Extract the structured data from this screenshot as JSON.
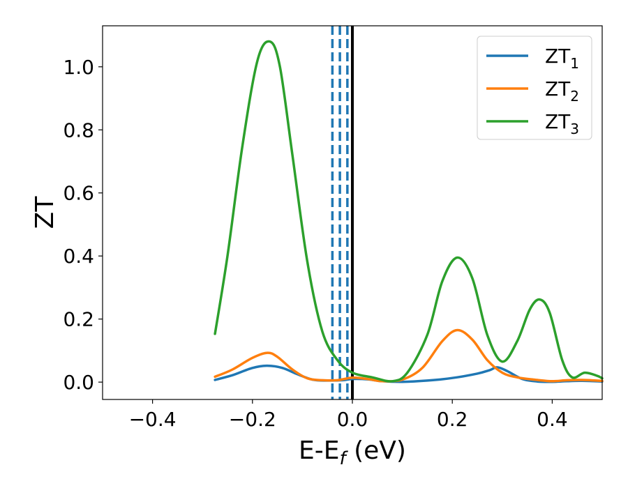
{
  "chart_data": {
    "type": "line",
    "title": "",
    "xlabel": "E-E",
    "xlabel_sub": "f",
    "xlabel_unit": " (eV)",
    "ylabel": "ZT",
    "xlim": [
      -0.5,
      0.5
    ],
    "ylim": [
      -0.055,
      1.13
    ],
    "x_ticks": [
      -0.4,
      -0.2,
      0.0,
      0.2,
      0.4
    ],
    "x_tick_labels": [
      "−0.4",
      "−0.2",
      "0.0",
      "0.2",
      "0.4"
    ],
    "y_ticks": [
      0.0,
      0.2,
      0.4,
      0.6,
      0.8,
      1.0
    ],
    "y_tick_labels": [
      "0.0",
      "0.2",
      "0.4",
      "0.6",
      "0.8",
      "1.0"
    ],
    "grid": false,
    "legend_position": "top-right",
    "series": [
      {
        "name": "ZT",
        "sub": "1",
        "color": "#1f77b4",
        "points": [
          [
            -0.275,
            0.007
          ],
          [
            -0.24,
            0.022
          ],
          [
            -0.2,
            0.045
          ],
          [
            -0.17,
            0.052
          ],
          [
            -0.14,
            0.045
          ],
          [
            -0.11,
            0.025
          ],
          [
            -0.08,
            0.008
          ],
          [
            -0.05,
            0.005
          ],
          [
            -0.02,
            0.006
          ],
          [
            0.0,
            0.01
          ],
          [
            0.03,
            0.009
          ],
          [
            0.06,
            0.003
          ],
          [
            0.1,
            0.001
          ],
          [
            0.15,
            0.005
          ],
          [
            0.2,
            0.013
          ],
          [
            0.25,
            0.027
          ],
          [
            0.275,
            0.038
          ],
          [
            0.29,
            0.047
          ],
          [
            0.31,
            0.035
          ],
          [
            0.34,
            0.01
          ],
          [
            0.37,
            0.002
          ],
          [
            0.4,
            0.001
          ],
          [
            0.43,
            0.003
          ],
          [
            0.46,
            0.004
          ],
          [
            0.5,
            0.002
          ]
        ]
      },
      {
        "name": "ZT",
        "sub": "2",
        "color": "#ff7f0e",
        "points": [
          [
            -0.275,
            0.017
          ],
          [
            -0.24,
            0.04
          ],
          [
            -0.2,
            0.077
          ],
          [
            -0.17,
            0.093
          ],
          [
            -0.15,
            0.08
          ],
          [
            -0.12,
            0.04
          ],
          [
            -0.09,
            0.012
          ],
          [
            -0.06,
            0.006
          ],
          [
            -0.03,
            0.006
          ],
          [
            0.0,
            0.014
          ],
          [
            0.03,
            0.01
          ],
          [
            0.06,
            0.003
          ],
          [
            0.1,
            0.008
          ],
          [
            0.14,
            0.045
          ],
          [
            0.18,
            0.13
          ],
          [
            0.21,
            0.165
          ],
          [
            0.24,
            0.135
          ],
          [
            0.27,
            0.07
          ],
          [
            0.3,
            0.03
          ],
          [
            0.33,
            0.015
          ],
          [
            0.37,
            0.007
          ],
          [
            0.4,
            0.003
          ],
          [
            0.43,
            0.006
          ],
          [
            0.46,
            0.007
          ],
          [
            0.5,
            0.004
          ]
        ]
      },
      {
        "name": "ZT",
        "sub": "3",
        "color": "#2ca02c",
        "points": [
          [
            -0.275,
            0.153
          ],
          [
            -0.25,
            0.4
          ],
          [
            -0.22,
            0.75
          ],
          [
            -0.19,
            1.02
          ],
          [
            -0.165,
            1.08
          ],
          [
            -0.145,
            1.0
          ],
          [
            -0.12,
            0.72
          ],
          [
            -0.09,
            0.38
          ],
          [
            -0.06,
            0.16
          ],
          [
            -0.03,
            0.07
          ],
          [
            0.0,
            0.03
          ],
          [
            0.04,
            0.015
          ],
          [
            0.08,
            0.003
          ],
          [
            0.11,
            0.03
          ],
          [
            0.15,
            0.15
          ],
          [
            0.18,
            0.32
          ],
          [
            0.21,
            0.395
          ],
          [
            0.24,
            0.33
          ],
          [
            0.27,
            0.15
          ],
          [
            0.3,
            0.065
          ],
          [
            0.33,
            0.13
          ],
          [
            0.355,
            0.23
          ],
          [
            0.375,
            0.262
          ],
          [
            0.395,
            0.22
          ],
          [
            0.42,
            0.07
          ],
          [
            0.44,
            0.015
          ],
          [
            0.465,
            0.03
          ],
          [
            0.49,
            0.02
          ],
          [
            0.5,
            0.012
          ]
        ]
      }
    ],
    "vertical_lines": [
      {
        "x": -0.04,
        "color": "#1f77b4",
        "style": "dashed"
      },
      {
        "x": -0.025,
        "color": "#1f77b4",
        "style": "dashed"
      },
      {
        "x": -0.01,
        "color": "#1f77b4",
        "style": "dashed"
      },
      {
        "x": 0.0,
        "color": "#000000",
        "style": "solid"
      }
    ]
  }
}
